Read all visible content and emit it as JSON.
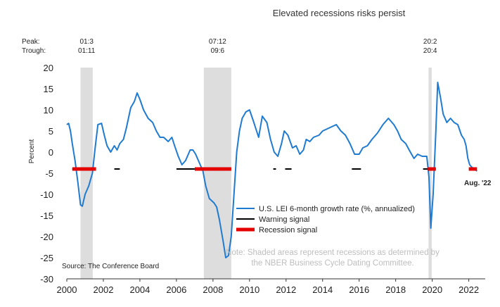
{
  "chart_data": {
    "type": "line",
    "title": "Elevated recessions risks persist",
    "ylabel": "Percent",
    "xlabel": "",
    "xlim": [
      2000,
      2022.9
    ],
    "ylim": [
      -30,
      20
    ],
    "x_ticks": [
      "2000",
      "2002",
      "2004",
      "2006",
      "2008",
      "2010",
      "2012",
      "2014",
      "2016",
      "2018",
      "2020",
      "2022"
    ],
    "y_ticks": [
      "20",
      "15",
      "10",
      "5",
      "0",
      "-5",
      "-10",
      "-15",
      "-20",
      "-25",
      "-30"
    ],
    "peak_label": "Peak:",
    "trough_label": "Trough:",
    "recessions": [
      {
        "peak": "01:3",
        "trough": "01:11",
        "start": 2000.75,
        "end": 2001.42
      },
      {
        "peak": "07:12",
        "trough": "09:6",
        "start": 2007.5,
        "end": 2009.0
      },
      {
        "peak": "20:2",
        "trough": "20:4",
        "start": 2019.8,
        "end": 2019.97
      }
    ],
    "series": [
      {
        "name": "U.S. LEI 6-month growth rate (%, annualized)",
        "color": "#1f7bd1",
        "points": [
          [
            2000.0,
            6.5
          ],
          [
            2000.1,
            6.8
          ],
          [
            2000.2,
            5.0
          ],
          [
            2000.3,
            2.0
          ],
          [
            2000.45,
            -2.0
          ],
          [
            2000.6,
            -7.0
          ],
          [
            2000.75,
            -12.5
          ],
          [
            2000.85,
            -12.8
          ],
          [
            2001.0,
            -10.0
          ],
          [
            2001.2,
            -8.0
          ],
          [
            2001.4,
            -5.0
          ],
          [
            2001.55,
            1.0
          ],
          [
            2001.7,
            6.5
          ],
          [
            2001.9,
            6.8
          ],
          [
            2002.05,
            4.0
          ],
          [
            2002.2,
            1.5
          ],
          [
            2002.4,
            0.0
          ],
          [
            2002.6,
            1.5
          ],
          [
            2002.75,
            0.5
          ],
          [
            2002.9,
            2.0
          ],
          [
            2003.1,
            3.0
          ],
          [
            2003.25,
            5.5
          ],
          [
            2003.5,
            10.5
          ],
          [
            2003.7,
            12.0
          ],
          [
            2003.85,
            14.0
          ],
          [
            2004.0,
            12.5
          ],
          [
            2004.2,
            10.0
          ],
          [
            2004.45,
            8.0
          ],
          [
            2004.7,
            7.0
          ],
          [
            2004.9,
            5.0
          ],
          [
            2005.1,
            3.5
          ],
          [
            2005.3,
            3.5
          ],
          [
            2005.55,
            2.5
          ],
          [
            2005.75,
            3.5
          ],
          [
            2005.9,
            1.5
          ],
          [
            2006.1,
            -1.0
          ],
          [
            2006.3,
            -3.0
          ],
          [
            2006.5,
            -2.0
          ],
          [
            2006.75,
            0.5
          ],
          [
            2006.9,
            0.5
          ],
          [
            2007.05,
            -0.5
          ],
          [
            2007.25,
            -2.5
          ],
          [
            2007.45,
            -4.5
          ],
          [
            2007.6,
            -8.0
          ],
          [
            2007.8,
            -11.0
          ],
          [
            2008.05,
            -12.0
          ],
          [
            2008.2,
            -13.0
          ],
          [
            2008.35,
            -16.0
          ],
          [
            2008.55,
            -21.0
          ],
          [
            2008.7,
            -25.0
          ],
          [
            2008.85,
            -24.5
          ],
          [
            2009.0,
            -20.0
          ],
          [
            2009.15,
            -10.0
          ],
          [
            2009.3,
            0.0
          ],
          [
            2009.45,
            5.0
          ],
          [
            2009.6,
            8.0
          ],
          [
            2009.8,
            9.5
          ],
          [
            2010.0,
            10.0
          ],
          [
            2010.2,
            7.5
          ],
          [
            2010.35,
            5.5
          ],
          [
            2010.5,
            3.5
          ],
          [
            2010.7,
            8.5
          ],
          [
            2010.95,
            7.0
          ],
          [
            2011.15,
            3.0
          ],
          [
            2011.35,
            0.0
          ],
          [
            2011.55,
            -1.0
          ],
          [
            2011.75,
            2.0
          ],
          [
            2011.9,
            5.0
          ],
          [
            2012.1,
            4.0
          ],
          [
            2012.35,
            1.0
          ],
          [
            2012.55,
            1.5
          ],
          [
            2012.75,
            -0.5
          ],
          [
            2012.95,
            0.5
          ],
          [
            2013.1,
            3.0
          ],
          [
            2013.3,
            2.5
          ],
          [
            2013.5,
            3.5
          ],
          [
            2013.8,
            4.0
          ],
          [
            2014.0,
            5.0
          ],
          [
            2014.25,
            5.5
          ],
          [
            2014.5,
            6.0
          ],
          [
            2014.75,
            6.5
          ],
          [
            2015.0,
            5.0
          ],
          [
            2015.25,
            4.0
          ],
          [
            2015.5,
            2.0
          ],
          [
            2015.75,
            -0.5
          ],
          [
            2016.0,
            -0.5
          ],
          [
            2016.2,
            1.0
          ],
          [
            2016.45,
            1.5
          ],
          [
            2016.7,
            3.0
          ],
          [
            2017.0,
            4.5
          ],
          [
            2017.3,
            6.5
          ],
          [
            2017.6,
            8.0
          ],
          [
            2017.9,
            6.5
          ],
          [
            2018.1,
            5.0
          ],
          [
            2018.3,
            3.0
          ],
          [
            2018.55,
            2.0
          ],
          [
            2018.8,
            0.0
          ],
          [
            2019.0,
            -1.5
          ],
          [
            2019.2,
            -0.5
          ],
          [
            2019.45,
            -1.0
          ],
          [
            2019.7,
            -1.0
          ],
          [
            2019.82,
            -6.0
          ],
          [
            2019.92,
            -18.0
          ],
          [
            2020.05,
            -10.0
          ],
          [
            2020.2,
            5.0
          ],
          [
            2020.3,
            16.5
          ],
          [
            2020.45,
            13.0
          ],
          [
            2020.6,
            9.0
          ],
          [
            2020.8,
            7.0
          ],
          [
            2021.0,
            8.0
          ],
          [
            2021.2,
            7.0
          ],
          [
            2021.4,
            6.5
          ],
          [
            2021.6,
            4.0
          ],
          [
            2021.75,
            3.0
          ],
          [
            2021.85,
            1.5
          ],
          [
            2021.95,
            -1.5
          ],
          [
            2022.05,
            -3.0
          ],
          [
            2022.15,
            -3.5
          ],
          [
            2022.3,
            -4.0
          ],
          [
            2022.45,
            -4.5
          ]
        ]
      },
      {
        "name": "Warning signal",
        "color": "#000000",
        "level": -4,
        "segments": [
          [
            2000.3,
            2000.75
          ],
          [
            2001.42,
            2001.55
          ],
          [
            2002.6,
            2002.9
          ],
          [
            2006.0,
            2007.0
          ],
          [
            2011.3,
            2011.45
          ],
          [
            2011.95,
            2012.3
          ],
          [
            2015.6,
            2016.1
          ],
          [
            2019.5,
            2019.75
          ]
        ]
      },
      {
        "name": "Recession signal",
        "color": "#e50000",
        "level": -4,
        "segments": [
          [
            2000.3,
            2001.6
          ],
          [
            2007.0,
            2009.0
          ],
          [
            2019.75,
            2020.2
          ],
          [
            2022.0,
            2022.45
          ]
        ]
      }
    ],
    "end_label": "Aug. '22",
    "source": "Source: The Conference Board",
    "note": [
      "Note: Shaded areas represent recessions as determined by",
      "the NBER Business Cycle Dating Committee."
    ]
  }
}
